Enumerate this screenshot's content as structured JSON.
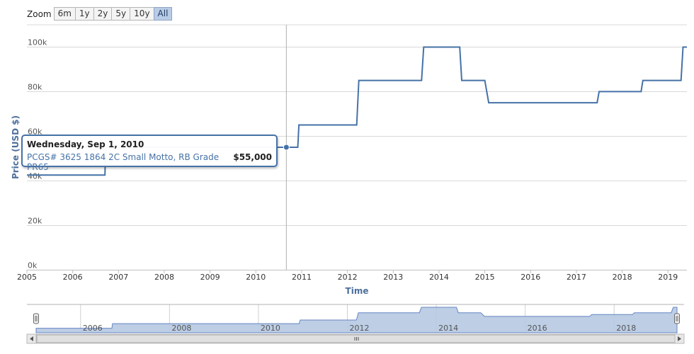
{
  "toolbar": {
    "zoom_label": "Zoom",
    "buttons": [
      "6m",
      "1y",
      "2y",
      "5y",
      "10y",
      "All"
    ],
    "active": "All"
  },
  "colors": {
    "series": "#4572a7",
    "navigator_fill": "#b6c9e2",
    "grid": "#d8d8d8"
  },
  "tooltip": {
    "date": "Wednesday, Sep 1, 2010",
    "series": "PCGS# 3625 1864 2C Small Motto, RB Grade PR65",
    "value": "$55,000"
  },
  "chart_data": {
    "type": "line",
    "step": true,
    "xlabel": "Time",
    "ylabel": "Price (USD $)",
    "ylim": [
      0,
      110000
    ],
    "yticks": [
      0,
      20000,
      40000,
      60000,
      80000,
      100000
    ],
    "ytick_labels": [
      "0k",
      "20k",
      "40k",
      "60k",
      "80k",
      "100k"
    ],
    "xticks": [
      "2005",
      "2006",
      "2007",
      "2008",
      "2009",
      "2010",
      "2011",
      "2012",
      "2013",
      "2014",
      "2015",
      "2016",
      "2017",
      "2018",
      "2019"
    ],
    "xlim": [
      "2005-01-01",
      "2019-06-01"
    ],
    "series": [
      {
        "name": "PCGS# 3625 1864 2C Small Motto, RB Grade PR65",
        "points": [
          [
            "2005-01-01",
            42500
          ],
          [
            "2006-09-15",
            42500
          ],
          [
            "2006-09-20",
            55000
          ],
          [
            "2010-12-01",
            55000
          ],
          [
            "2010-12-10",
            65000
          ],
          [
            "2012-03-15",
            65000
          ],
          [
            "2012-04-01",
            85000
          ],
          [
            "2013-08-15",
            85000
          ],
          [
            "2013-09-01",
            100000
          ],
          [
            "2014-06-15",
            100000
          ],
          [
            "2014-07-01",
            85000
          ],
          [
            "2015-01-01",
            85000
          ],
          [
            "2015-02-01",
            75000
          ],
          [
            "2017-06-15",
            75000
          ],
          [
            "2017-07-01",
            80000
          ],
          [
            "2018-06-01",
            80000
          ],
          [
            "2018-06-15",
            85000
          ],
          [
            "2019-04-15",
            85000
          ],
          [
            "2019-05-01",
            100000
          ],
          [
            "2019-06-01",
            100000
          ]
        ]
      }
    ],
    "highlight": {
      "x": "2010-09-01",
      "y": 55000
    },
    "navigator": {
      "labels": [
        "2006",
        "2008",
        "2010",
        "2012",
        "2014",
        "2016",
        "2018"
      ]
    }
  }
}
